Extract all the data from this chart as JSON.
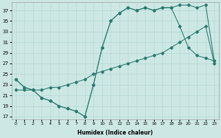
{
  "xlabel": "Humidex (Indice chaleur)",
  "bg_color": "#cde8e4",
  "line_color": "#2a7a70",
  "grid_color": "#b0d8d4",
  "xlim": [
    -0.5,
    23.5
  ],
  "ylim": [
    16.5,
    38.5
  ],
  "yticks": [
    17,
    19,
    21,
    23,
    25,
    27,
    29,
    31,
    33,
    35,
    37
  ],
  "xticks": [
    0,
    1,
    2,
    3,
    4,
    5,
    6,
    7,
    8,
    9,
    10,
    11,
    12,
    13,
    14,
    15,
    16,
    17,
    18,
    19,
    20,
    21,
    22,
    23
  ],
  "line1_x": [
    0,
    1,
    2,
    3,
    4,
    5,
    6,
    7,
    8,
    9,
    10,
    11,
    12,
    13,
    14,
    15,
    16,
    17,
    18,
    19,
    20,
    21,
    22,
    23
  ],
  "line1_y": [
    24,
    22.5,
    22,
    20.5,
    20,
    19,
    18.5,
    18,
    17,
    23,
    30,
    35,
    36.5,
    37.5,
    37,
    37.5,
    37,
    37.5,
    37.5,
    38,
    38,
    37.5,
    38,
    27.5
  ],
  "line2_x": [
    0,
    1,
    2,
    3,
    4,
    5,
    6,
    7,
    8,
    9,
    10,
    11,
    12,
    13,
    14,
    15,
    16,
    17,
    18,
    19,
    20,
    21,
    22,
    23
  ],
  "line2_y": [
    22,
    22,
    22,
    22,
    22.5,
    22.5,
    23,
    23.5,
    24,
    25,
    25.5,
    26,
    26.5,
    27,
    27.5,
    28,
    28.5,
    29,
    30,
    31,
    32,
    33,
    34,
    27
  ],
  "line3_x": [
    0,
    1,
    2,
    3,
    4,
    5,
    6,
    7,
    8,
    9,
    10,
    11,
    12,
    13,
    14,
    15,
    16,
    17,
    18,
    19,
    20,
    21,
    22,
    23
  ],
  "line3_y": [
    24,
    22.5,
    22,
    20.5,
    20,
    19,
    18.5,
    18,
    17,
    23,
    30,
    35,
    36.5,
    37.5,
    37,
    37.5,
    37,
    37.5,
    37.5,
    34,
    30,
    28.5,
    28,
    27.5
  ]
}
